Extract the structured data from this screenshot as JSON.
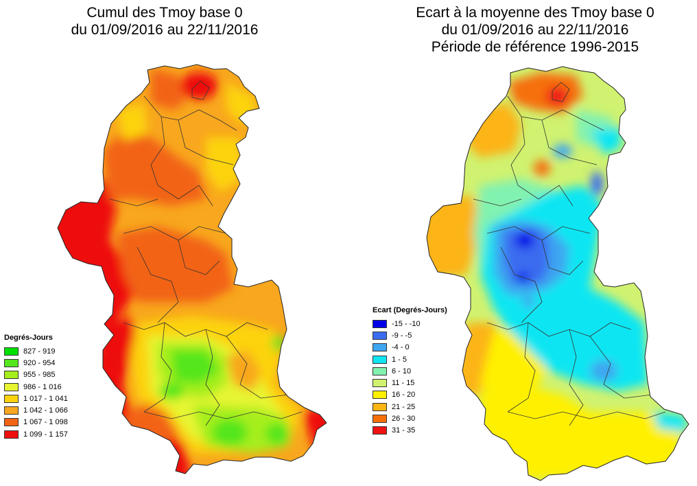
{
  "left_map": {
    "title_lines": [
      "Cumul des Tmoy base 0",
      "du 01/09/2016 au 22/11/2016"
    ],
    "legend_title": "Degrés-Jours",
    "legend": [
      {
        "label": "827 - 919",
        "color": "#00e000"
      },
      {
        "label": "920 - 954",
        "color": "#55e61e"
      },
      {
        "label": "955 - 985",
        "color": "#a6ee1c"
      },
      {
        "label": "986 - 1 016",
        "color": "#e6f530"
      },
      {
        "label": "1 017 - 1 041",
        "color": "#fcd30c"
      },
      {
        "label": "1 042 - 1 066",
        "color": "#f8a71e"
      },
      {
        "label": "1 067 - 1 098",
        "color": "#f26414"
      },
      {
        "label": "1 099 - 1 157",
        "color": "#ee1010"
      }
    ]
  },
  "right_map": {
    "title_lines": [
      "Ecart à la moyenne des Tmoy base 0",
      "du 01/09/2016 au 22/11/2016",
      "Période de référence 1996-2015"
    ],
    "legend_title": "Ecart (Degrés-Jours)",
    "legend": [
      {
        "label": "-15 - -10",
        "color": "#0000e6"
      },
      {
        "label": "-9 - -5",
        "color": "#3b6cf0"
      },
      {
        "label": "-4 - 0",
        "color": "#3ea6f0"
      },
      {
        "label": "1 - 5",
        "color": "#0fe6f2"
      },
      {
        "label": "6 - 10",
        "color": "#82f2b0"
      },
      {
        "label": "11 - 15",
        "color": "#d0f270"
      },
      {
        "label": "16 - 20",
        "color": "#fff000"
      },
      {
        "label": "21 - 25",
        "color": "#fcb414"
      },
      {
        "label": "26 - 30",
        "color": "#f6700a"
      },
      {
        "label": "31 - 35",
        "color": "#ee1212"
      }
    ]
  }
}
